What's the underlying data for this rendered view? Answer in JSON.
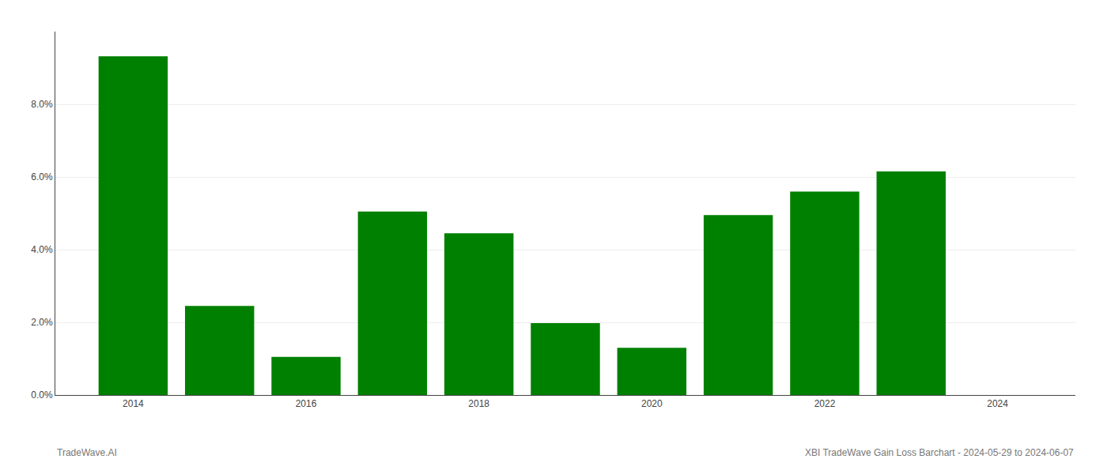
{
  "chart_data": {
    "type": "bar",
    "x": [
      2014,
      2015,
      2016,
      2017,
      2018,
      2019,
      2020,
      2021,
      2022,
      2023
    ],
    "values": [
      0.0932,
      0.0245,
      0.0105,
      0.0505,
      0.0445,
      0.0198,
      0.013,
      0.0495,
      0.056,
      0.0615
    ],
    "color": "#008000",
    "xlim": [
      2013.1,
      2024.9
    ],
    "xticks": [
      2014,
      2016,
      2018,
      2020,
      2022,
      2024
    ],
    "ylim": [
      0,
      0.1
    ],
    "yticks": [
      {
        "value": 0.0,
        "label": "0.0%"
      },
      {
        "value": 0.02,
        "label": "2.0%"
      },
      {
        "value": 0.04,
        "label": "4.0%"
      },
      {
        "value": 0.06,
        "label": "6.0%"
      },
      {
        "value": 0.08,
        "label": "8.0%"
      }
    ],
    "grid": true,
    "annotations": [
      "TradeWave.AI",
      "XBI TradeWave Gain Loss Barchart - 2024-05-29 to 2024-06-07"
    ]
  }
}
